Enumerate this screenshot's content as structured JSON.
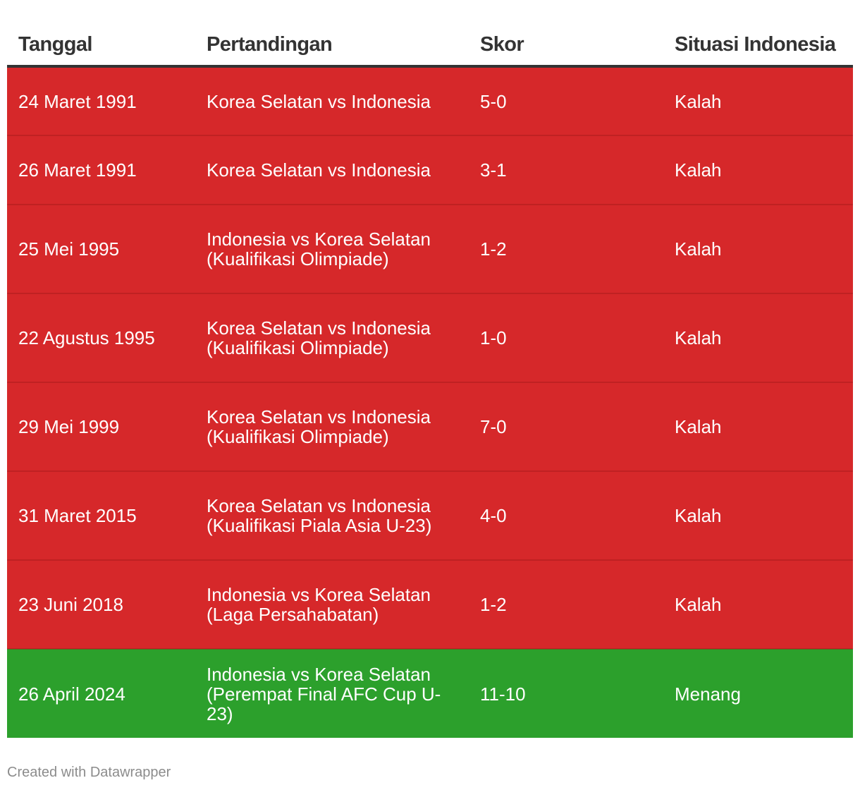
{
  "chart_data": {
    "type": "table",
    "columns": [
      "Tanggal",
      "Pertandingan",
      "Skor",
      "Situasi Indonesia"
    ],
    "rows": [
      {
        "date": "24 Maret 1991",
        "match": "Korea Selatan vs Indonesia",
        "score": "5-0",
        "result": "Kalah"
      },
      {
        "date": "26 Maret 1991",
        "match": "Korea Selatan vs Indonesia",
        "score": "3-1",
        "result": "Kalah"
      },
      {
        "date": "25 Mei 1995",
        "match": "Indonesia vs Korea Selatan (Kualifikasi Olimpiade)",
        "score": "1-2",
        "result": "Kalah"
      },
      {
        "date": "22 Agustus 1995",
        "match": "Korea Selatan vs Indonesia (Kualifikasi Olimpiade)",
        "score": "1-0",
        "result": "Kalah"
      },
      {
        "date": "29 Mei 1999",
        "match": "Korea Selatan vs Indonesia (Kualifikasi Olimpiade)",
        "score": "7-0",
        "result": "Kalah"
      },
      {
        "date": "31 Maret 2015",
        "match": "Korea Selatan vs Indonesia (Kualifikasi Piala Asia U-23)",
        "score": "4-0",
        "result": "Kalah"
      },
      {
        "date": "23 Juni 2018",
        "match": "Indonesia vs Korea Selatan (Laga Persahabatan)",
        "score": "1-2",
        "result": "Kalah"
      },
      {
        "date": "26 April 2024",
        "match": "Indonesia vs Korea Selatan (Perempat Final AFC Cup U-23)",
        "score": "11-10",
        "result": "Menang"
      }
    ],
    "colors": {
      "loss_row": "#d6282a",
      "win_row": "#2ca02c",
      "header_text": "#333333",
      "cell_text": "#ffffff"
    }
  },
  "footer": {
    "credit": "Created with Datawrapper"
  }
}
